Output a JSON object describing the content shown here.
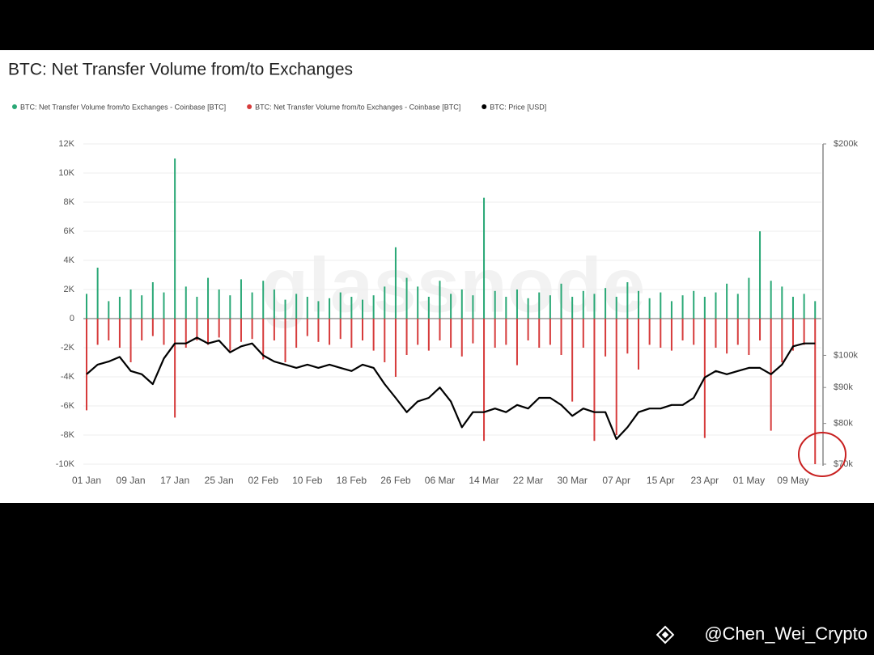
{
  "chart_data": {
    "type": "bar",
    "title": "BTC: Net Transfer Volume from/to Exchanges",
    "watermark": "glassnode",
    "credit": "@Chen_Wei_Crypto",
    "grid": true,
    "y2log": true,
    "x": [
      "01 Jan",
      "03 Jan",
      "05 Jan",
      "07 Jan",
      "09 Jan",
      "11 Jan",
      "13 Jan",
      "15 Jan",
      "17 Jan",
      "19 Jan",
      "21 Jan",
      "23 Jan",
      "25 Jan",
      "27 Jan",
      "29 Jan",
      "31 Jan",
      "02 Feb",
      "04 Feb",
      "06 Feb",
      "08 Feb",
      "10 Feb",
      "12 Feb",
      "14 Feb",
      "16 Feb",
      "18 Feb",
      "20 Feb",
      "22 Feb",
      "24 Feb",
      "26 Feb",
      "28 Feb",
      "02 Mar",
      "04 Mar",
      "06 Mar",
      "08 Mar",
      "10 Mar",
      "12 Mar",
      "14 Mar",
      "16 Mar",
      "18 Mar",
      "20 Mar",
      "22 Mar",
      "24 Mar",
      "26 Mar",
      "28 Mar",
      "30 Mar",
      "01 Apr",
      "03 Apr",
      "05 Apr",
      "07 Apr",
      "09 Apr",
      "11 Apr",
      "13 Apr",
      "15 Apr",
      "17 Apr",
      "19 Apr",
      "21 Apr",
      "23 Apr",
      "25 Apr",
      "27 Apr",
      "29 Apr",
      "01 May",
      "03 May",
      "05 May",
      "07 May",
      "09 May",
      "11 May",
      "13 May"
    ],
    "xticks": [
      "01 Jan",
      "09 Jan",
      "17 Jan",
      "25 Jan",
      "02 Feb",
      "10 Feb",
      "18 Feb",
      "26 Feb",
      "06 Mar",
      "14 Mar",
      "22 Mar",
      "30 Mar",
      "07 Apr",
      "15 Apr",
      "23 Apr",
      "01 May",
      "09 May"
    ],
    "ylim": [
      -10000,
      12000
    ],
    "yticks": [
      {
        "value": 12000,
        "label": "12K"
      },
      {
        "value": 10000,
        "label": "10K"
      },
      {
        "value": 8000,
        "label": "8K"
      },
      {
        "value": 6000,
        "label": "6K"
      },
      {
        "value": 4000,
        "label": "4K"
      },
      {
        "value": 2000,
        "label": "2K"
      },
      0,
      {
        "value": -2000,
        "label": "-2K"
      },
      {
        "value": -4000,
        "label": "-4K"
      },
      {
        "value": -6000,
        "label": "-6K"
      },
      {
        "value": -8000,
        "label": "-8K"
      },
      {
        "value": -10000,
        "label": "-10K"
      }
    ],
    "y2lim": [
      70000,
      200000
    ],
    "y2ticks": [
      {
        "value": 200000,
        "label": "$200k"
      },
      {
        "value": 100000,
        "label": "$100k"
      },
      {
        "value": 90000,
        "label": "$90k"
      },
      {
        "value": 80000,
        "label": "$80k"
      },
      {
        "value": 70000,
        "label": "$70k"
      }
    ],
    "series": [
      {
        "name": "BTC: Net Transfer Volume from/to Exchanges - Coinbase [BTC]",
        "color": "#2aa876",
        "values": [
          1700,
          3500,
          1200,
          1500,
          2000,
          1600,
          2500,
          1800,
          11000,
          2200,
          1500,
          2800,
          2000,
          1600,
          2700,
          1800,
          2600,
          2000,
          1300,
          1700,
          1500,
          1200,
          1400,
          1800,
          1500,
          1300,
          1600,
          2200,
          4900,
          2800,
          2200,
          1500,
          2600,
          1700,
          2000,
          1600,
          8300,
          1900,
          1500,
          2000,
          1400,
          1800,
          1600,
          2400,
          1500,
          1900,
          1700,
          2100,
          1500,
          2500,
          1900,
          1400,
          1800,
          1200,
          1600,
          1900,
          1500,
          1800,
          2400,
          1700,
          2800,
          6000,
          2600,
          2200,
          1500,
          1700,
          1200
        ]
      },
      {
        "name": "BTC: Net Transfer Volume from/to Exchanges - Coinbase [BTC]",
        "color": "#d63b3b",
        "values": [
          -6300,
          -1800,
          -1500,
          -2000,
          -3000,
          -1500,
          -1200,
          -1800,
          -6800,
          -2000,
          -1500,
          -1800,
          -1300,
          -2200,
          -1600,
          -1400,
          -2800,
          -1500,
          -3000,
          -2000,
          -1200,
          -1600,
          -1800,
          -1400,
          -2000,
          -1500,
          -2200,
          -3000,
          -4000,
          -2500,
          -1800,
          -2200,
          -1500,
          -2000,
          -2600,
          -1700,
          -8400,
          -2000,
          -1800,
          -3200,
          -1500,
          -2000,
          -1800,
          -2500,
          -5700,
          -2000,
          -8400,
          -2600,
          -8000,
          -2400,
          -3500,
          -1800,
          -2000,
          -2200,
          -1500,
          -1800,
          -8200,
          -2000,
          -2400,
          -1800,
          -2500,
          -1500,
          -7700,
          -3000,
          -2200,
          -1800,
          -10000
        ]
      },
      {
        "name": "BTC: Price [USD]",
        "color": "#000000",
        "type": "line",
        "axis": "y2",
        "values": [
          94000,
          97000,
          98000,
          99500,
          95000,
          94000,
          91000,
          99000,
          104000,
          104000,
          106000,
          104000,
          105000,
          101000,
          103000,
          104000,
          100000,
          98000,
          97000,
          96000,
          97000,
          96000,
          97000,
          96000,
          95000,
          97000,
          96000,
          91000,
          87000,
          83000,
          86000,
          87000,
          90000,
          86000,
          79000,
          83000,
          83000,
          84000,
          83000,
          85000,
          84000,
          87000,
          87000,
          85000,
          82000,
          84000,
          83000,
          83000,
          76000,
          79000,
          83000,
          84000,
          84000,
          85000,
          85000,
          87000,
          93000,
          95000,
          94000,
          95000,
          96000,
          96000,
          94000,
          97000,
          103000,
          104000,
          104000
        ]
      }
    ]
  }
}
